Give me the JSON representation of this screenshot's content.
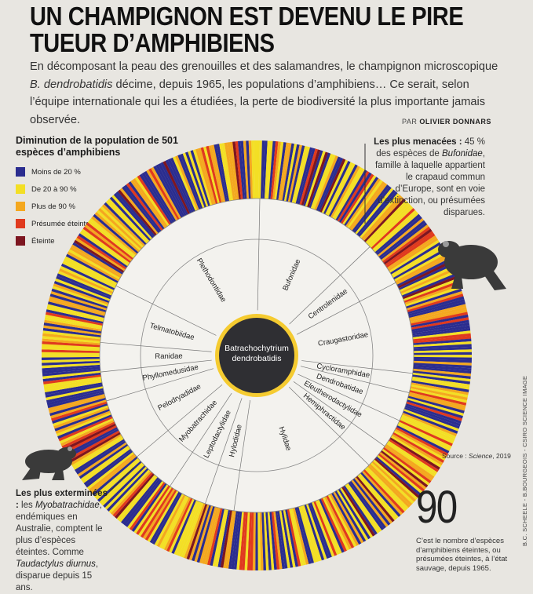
{
  "title": "UN CHAMPIGNON EST DEVENU LE PIRE TUEUR D’AMPHIBIENS",
  "intro": {
    "before": "En décomposant la peau des grenouilles et des salamandres, le champignon microscopique ",
    "species": "B. dendrobatidis",
    "after": " décime, depuis 1965, les populations d’amphibiens… Ce serait, selon l’équipe internationale qui les a étudiées, la perte de biodiversité la plus importante jamais observée."
  },
  "byline": {
    "prefix": "PAR ",
    "author": "OLIVIER DONNARS"
  },
  "legend": {
    "title": "Diminution de la population de 501 espèces d’amphibiens",
    "items": [
      {
        "label": "Moins de 20 %",
        "color": "#2b2d8f"
      },
      {
        "label": "De 20 à 90 %",
        "color": "#f3df25"
      },
      {
        "label": "Plus de 90 %",
        "color": "#f4a81f"
      },
      {
        "label": "Présumée éteinte",
        "color": "#e03a1e"
      },
      {
        "label": "Éteinte",
        "color": "#7d1620"
      }
    ]
  },
  "menacees": {
    "heading": "Les plus menacées :",
    "text1": " 45 % des espèces de ",
    "family": "Bufonidae",
    "text2": ", famille à laquelle appartient le crapaud commun d’Europe, sont en voie d’extinction, ou présumées disparues."
  },
  "exterminees": {
    "heading": "Les plus exterminées :",
    "text1": " les ",
    "family": "Myobatrachidae",
    "text2": ", endémiques en Australie, comptent le plus d’espèces éteintes. Comme ",
    "species": "Taudactylus diurnus",
    "text3": ", disparue depuis 15 ans."
  },
  "stat": {
    "value": "90",
    "note": "C’est le nombre d’espèces d’amphibiens éteintes, ou présumées éteintes, à l’état sauvage, depuis 1965."
  },
  "source": {
    "prefix": "Source : ",
    "name": "Science",
    "year": ", 2019"
  },
  "credit": "B.C. SCHEELE - B.BOURGEOIS - CSIRO SCIENCE IMAGE",
  "center_label": [
    "Batrachochytrium",
    "dendrobatidis"
  ],
  "colors": {
    "ring_light": "#f3f2ee",
    "center": "#2f2f33",
    "center_glow": "#f5c61b",
    "frog": "#3a3a3a"
  },
  "chart_data": {
    "type": "radial-bar",
    "total_species": 501,
    "categories": [
      "Moins de 20 %",
      "De 20 à 90 %",
      "Plus de 90 %",
      "Présumée éteinte",
      "Éteinte"
    ],
    "families": [
      {
        "name": "Bufonidae",
        "share": 0.125
      },
      {
        "name": "Centrolenidae",
        "share": 0.045
      },
      {
        "name": "Craugastoridae",
        "share": 0.095
      },
      {
        "name": "Cycloramphidae",
        "share": 0.02
      },
      {
        "name": "Dendrobatidae",
        "share": 0.03
      },
      {
        "name": "Eleutherodactylidae",
        "share": 0.03
      },
      {
        "name": "Hemiphractidae",
        "share": 0.025
      },
      {
        "name": "Hylidae",
        "share": 0.15
      },
      {
        "name": "Hylodidae",
        "share": 0.03
      },
      {
        "name": "Leptodactylidae",
        "share": 0.04
      },
      {
        "name": "Myobatrachidae",
        "share": 0.045
      },
      {
        "name": "Pelodryadidae",
        "share": 0.065
      },
      {
        "name": "Phyllomedusidae",
        "share": 0.03
      },
      {
        "name": "Ranidae",
        "share": 0.03
      },
      {
        "name": "Telmatobiidae",
        "share": 0.06
      },
      {
        "name": "Plethodontidae",
        "share": 0.18
      }
    ]
  }
}
